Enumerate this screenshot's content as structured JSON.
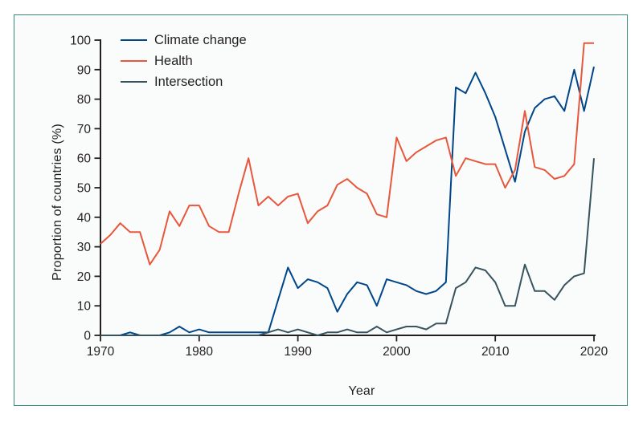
{
  "figure": {
    "y_axis_label": "Proportion of countries (%)",
    "x_axis_label": "Year"
  },
  "chart_data": {
    "type": "line",
    "title": "",
    "xlabel": "Year",
    "ylabel": "Proportion of countries (%)",
    "x_range": [
      1970,
      2020
    ],
    "ylim": [
      0,
      100
    ],
    "grid": false,
    "legend_position": "top-left-inside",
    "y_ticks": [
      0,
      10,
      20,
      30,
      40,
      50,
      60,
      70,
      80,
      90,
      100
    ],
    "x_ticks": [
      1970,
      1980,
      1990,
      2000,
      2010,
      2020
    ],
    "frame_border_color": "#3E8A7A",
    "axis_color": "#231f20",
    "x": [
      1970,
      1971,
      1972,
      1973,
      1974,
      1975,
      1976,
      1977,
      1978,
      1979,
      1980,
      1981,
      1982,
      1983,
      1984,
      1985,
      1986,
      1987,
      1988,
      1989,
      1990,
      1991,
      1992,
      1993,
      1994,
      1995,
      1996,
      1997,
      1998,
      1999,
      2000,
      2001,
      2002,
      2003,
      2004,
      2005,
      2006,
      2007,
      2008,
      2009,
      2010,
      2011,
      2012,
      2013,
      2014,
      2015,
      2016,
      2017,
      2018,
      2019,
      2020
    ],
    "series": [
      {
        "name": "Climate change",
        "color": "#00468B",
        "values": [
          0,
          0,
          0,
          1,
          0,
          0,
          0,
          1,
          3,
          1,
          2,
          1,
          1,
          1,
          1,
          1,
          1,
          1,
          12,
          23,
          16,
          19,
          18,
          16,
          8,
          14,
          18,
          17,
          10,
          19,
          18,
          17,
          15,
          14,
          15,
          18,
          84,
          82,
          89,
          82,
          74,
          63,
          52,
          69,
          77,
          80,
          81,
          76,
          90,
          76,
          91
        ]
      },
      {
        "name": "Health",
        "color": "#E8573C",
        "values": [
          31,
          34,
          38,
          35,
          35,
          24,
          29,
          42,
          37,
          44,
          44,
          37,
          35,
          35,
          48,
          60,
          44,
          47,
          44,
          47,
          48,
          38,
          42,
          44,
          51,
          53,
          50,
          48,
          41,
          40,
          67,
          59,
          62,
          64,
          66,
          67,
          54,
          60,
          59,
          58,
          58,
          50,
          56,
          76,
          57,
          56,
          53,
          54,
          58,
          99,
          99
        ]
      },
      {
        "name": "Intersection",
        "color": "#37535E",
        "values": [
          0,
          0,
          0,
          0,
          0,
          0,
          0,
          0,
          0,
          0,
          0,
          0,
          0,
          0,
          0,
          0,
          0,
          1,
          2,
          1,
          2,
          1,
          0,
          1,
          1,
          2,
          1,
          1,
          3,
          1,
          2,
          3,
          3,
          2,
          4,
          4,
          16,
          18,
          23,
          22,
          18,
          10,
          10,
          24,
          15,
          15,
          12,
          17,
          20,
          21,
          60
        ]
      }
    ]
  }
}
